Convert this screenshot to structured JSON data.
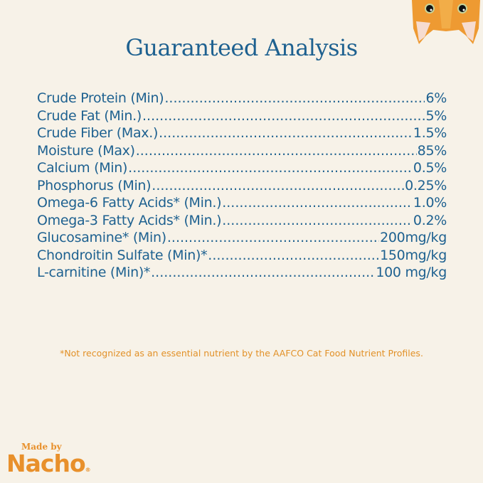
{
  "title": "Guaranteed Analysis",
  "rows": [
    {
      "label": "Crude Protein (Min)",
      "value": "6%"
    },
    {
      "label": "Crude Fat (Min.)",
      "value": "5%"
    },
    {
      "label": "Crude Fiber (Max.)",
      "value": "1.5%"
    },
    {
      "label": "Moisture (Max)",
      "value": "85%"
    },
    {
      "label": "Calcium (Min)",
      "value": "0.5%"
    },
    {
      "label": "Phosphorus (Min)",
      "value": "0.25%"
    },
    {
      "label": "Omega-6 Fatty Acids* (Min.)",
      "value": "1.0%"
    },
    {
      "label": "Omega-3 Fatty Acids* (Min.)",
      "value": "0.2%"
    },
    {
      "label": "Glucosamine* (Min)",
      "value": "200mg/kg"
    },
    {
      "label": "Chondroitin Sulfate (Min)*",
      "value": "150mg/kg"
    },
    {
      "label": "L-carnitine (Min)*",
      "value": "100 mg/kg"
    }
  ],
  "footnote": "*Not recognized as an essential nutrient by the AAFCO Cat Food Nutrient Profiles.",
  "logo": {
    "tagline": "Made by",
    "brand": "Nacho",
    "mark": "®"
  },
  "colors": {
    "background": "#f7f2e8",
    "text": "#1e6190",
    "accent": "#e8902b"
  }
}
